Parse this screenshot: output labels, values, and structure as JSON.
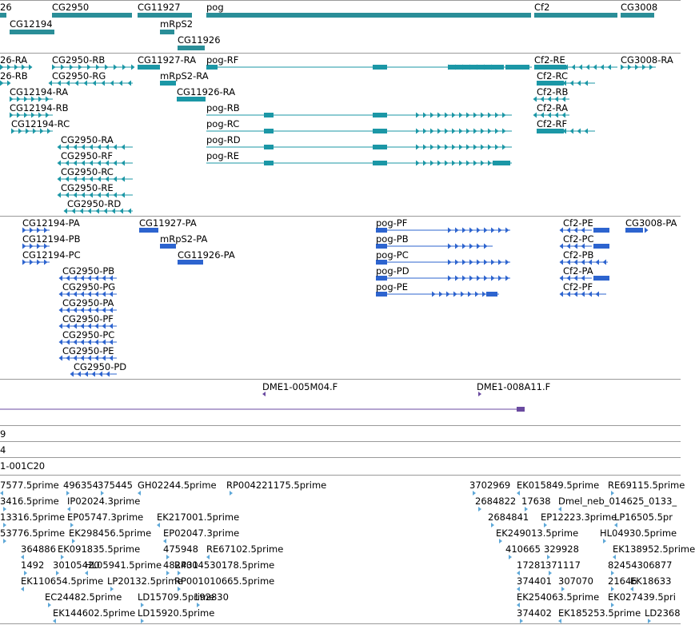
{
  "colors": {
    "gene": "#2a8e98",
    "transcript": "#1b97a6",
    "protein": "#2d64cf",
    "clone": "#6a4aa0",
    "est": "#5ea8d8",
    "separator": "#9a9a9a"
  },
  "gene_track": {
    "labels": [
      "26",
      "CG2950",
      "CG11927",
      "pog",
      "Cf2",
      "CG3008",
      "CG12194",
      "mRpS2",
      "CG11926"
    ]
  },
  "transcript_track": {
    "labels": [
      "26-RA",
      "CG2950-RB",
      "CG11927-RA",
      "pog-RF",
      "Cf2-RE",
      "CG3008-RA",
      "26-RB",
      "CG2950-RG",
      "mRpS2-RA",
      "Cf2-RC",
      "CG12194-RA",
      "CG11926-RA",
      "Cf2-RB",
      "CG12194-RB",
      "pog-RB",
      "Cf2-RA",
      "CG12194-RC",
      "pog-RC",
      "Cf2-RF",
      "CG2950-RA",
      "pog-RD",
      "CG2950-RF",
      "pog-RE",
      "CG2950-RC",
      "CG2950-RE",
      "CG2950-RD"
    ]
  },
  "protein_track": {
    "labels": [
      "CG12194-PA",
      "CG11927-PA",
      "pog-PF",
      "Cf2-PE",
      "CG3008-PA",
      "CG12194-PB",
      "mRpS2-PA",
      "pog-PB",
      "Cf2-PC",
      "CG12194-PC",
      "CG11926-PA",
      "pog-PC",
      "Cf2-PB",
      "CG2950-PB",
      "pog-PD",
      "Cf2-PA",
      "CG2950-PG",
      "pog-PE",
      "Cf2-PF",
      "CG2950-PA",
      "CG2950-PF",
      "CG2950-PC",
      "CG2950-PE",
      "CG2950-PD"
    ]
  },
  "clone_track": {
    "labels": [
      "DME1-005M04.F",
      "DME1-008A11.F"
    ]
  },
  "partial_rows": {
    "labels": [
      "9",
      "4",
      "1-001C20"
    ]
  },
  "est_track": {
    "labels": [
      "7577.5prime",
      "496354",
      "375445",
      "GH02244.5prime",
      "RP004221175.5prime",
      "3702969",
      "EK015849.5prime",
      "RE69115.5prime",
      "3416.5prime",
      "IP02024.3prime",
      "2684822",
      "17638",
      "Dmel_neb_014625_0133_",
      "13316.5prime",
      "EP05747.3prime",
      "EK217001.5prime",
      "2684841",
      "EP12223.3prime",
      "LP16505.5pr",
      "53776.5prime",
      "EK298456.5prime",
      "EP02047.3prime",
      "EK249013.5prime",
      "HL04930.5prime",
      "364886",
      "EK091835.5prime",
      "475948",
      "RE67102.5prime",
      "410665",
      "329928",
      "EK138952.5prime",
      "1492",
      "30105420",
      "HL05941.5prime",
      "482431",
      "RP004530178.5prime",
      "17281",
      "371117",
      "82454306877",
      "EK110654.5prime",
      "LP20132.5prime",
      "RP001010665.5prime",
      "374401",
      "307070",
      "21646",
      "EK18633",
      "EC24482.5prime",
      "192830",
      "EK254063.5prime",
      "EK027439.5pri",
      "LD15709.5prime",
      "EK144602.5prime",
      "LD15920.5prime",
      "374402",
      "EK185253.5prime",
      "LD2368"
    ]
  }
}
